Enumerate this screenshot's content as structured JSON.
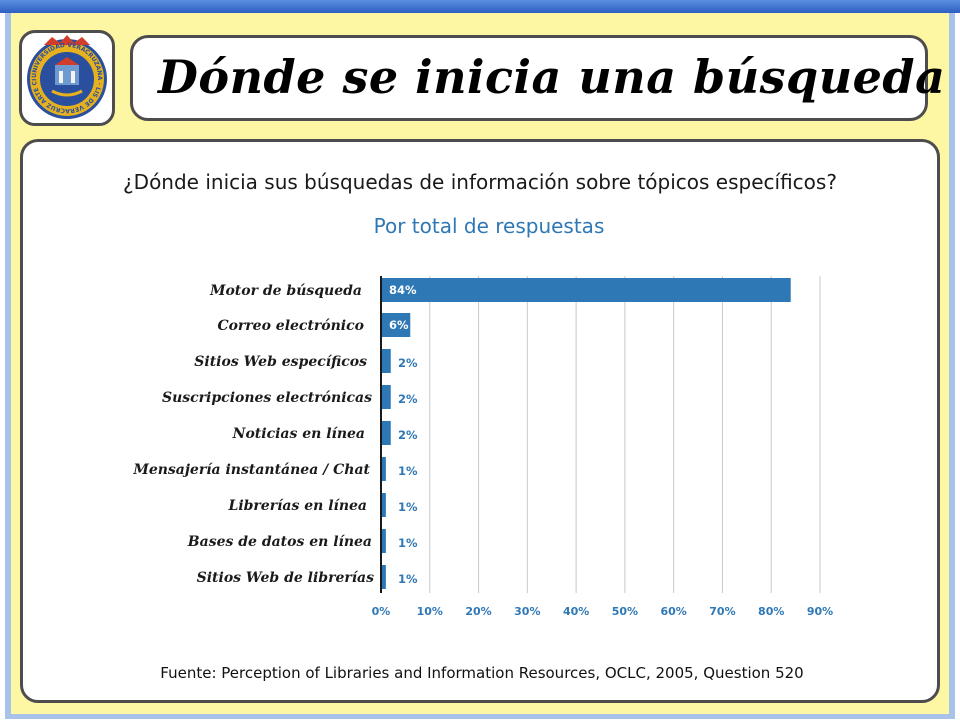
{
  "header": {
    "title": "Dónde se inicia una búsqueda",
    "logo_text": "UNIVERSIDAD VERACRUZANA · LIS DE VERACRUZ ARTE CIENCIA LUZ"
  },
  "colors": {
    "bar": "#2f78b6",
    "frame_background": "#fdf6a3",
    "frame_border": "#a8c2ea",
    "panel_border": "#4d4d4d"
  },
  "chart_data": {
    "type": "bar",
    "orientation": "horizontal",
    "title": "¿Dónde inicia sus búsquedas de información sobre tópicos específicos?",
    "subtitle": "Por total de respuestas",
    "categories": [
      "Motor de búsqueda",
      "Correo electrónico",
      "Sitios Web específicos",
      "Suscripciones electrónicas",
      "Noticias en línea",
      "Mensajería instantánea / Chat",
      "Librerías en línea",
      "Bases de datos en línea",
      "Sitios Web de librerías"
    ],
    "values": [
      84,
      6,
      2,
      2,
      2,
      1,
      1,
      1,
      1
    ],
    "value_labels": [
      "84%",
      "6%",
      "2%",
      "2%",
      "2%",
      "1%",
      "1%",
      "1%",
      "1%"
    ],
    "xlim": [
      0,
      90
    ],
    "xticks": [
      0,
      10,
      20,
      30,
      40,
      50,
      60,
      70,
      80,
      90
    ],
    "xtick_labels": [
      "0%",
      "10%",
      "20%",
      "30%",
      "40%",
      "50%",
      "60%",
      "70%",
      "80%",
      "90%"
    ],
    "grid": true,
    "legend": "none"
  },
  "footer": {
    "source": "Fuente: Perception of Libraries and Information Resources, OCLC, 2005, Question 520"
  }
}
